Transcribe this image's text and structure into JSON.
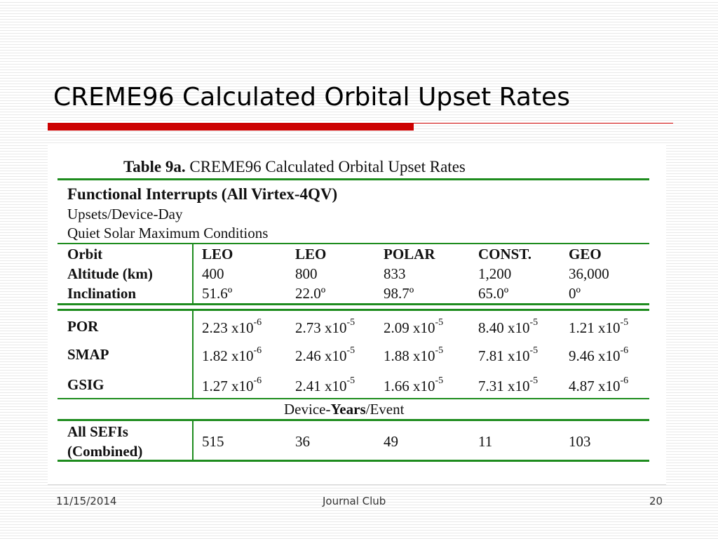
{
  "slide": {
    "title": "CREME96 Calculated Orbital Upset Rates",
    "footer": {
      "date": "11/15/2014",
      "center": "Journal Club",
      "page": "20"
    }
  },
  "table": {
    "caption_bold": "Table 9a.",
    "caption_rest": " CREME96 Calculated Orbital Upset Rates",
    "section_title": "Functional Interrupts (All Virtex-4QV)",
    "subtitle_1": "Upsets/Device-Day",
    "subtitle_2": "Quiet Solar Maximum Conditions",
    "header_labels": [
      "Orbit",
      "Altitude (km)",
      "Inclination"
    ],
    "orbits": [
      {
        "orbit": "LEO",
        "altitude": "400",
        "inclination": "51.6º"
      },
      {
        "orbit": "LEO",
        "altitude": "800",
        "inclination": "22.0º"
      },
      {
        "orbit": "POLAR",
        "altitude": "833",
        "inclination": "98.7º"
      },
      {
        "orbit": "CONST.",
        "altitude": "1,200",
        "inclination": "65.0º"
      },
      {
        "orbit": "GEO",
        "altitude": "36,000",
        "inclination": "0º"
      }
    ],
    "rows": [
      {
        "label": "POR",
        "cells": [
          {
            "m": "2.23 x10",
            "e": "-6"
          },
          {
            "m": "2.73 x10",
            "e": "-5"
          },
          {
            "m": "2.09 x10",
            "e": "-5"
          },
          {
            "m": "8.40 x10",
            "e": "-5"
          },
          {
            "m": "1.21 x10",
            "e": "-5"
          }
        ]
      },
      {
        "label": "SMAP",
        "cells": [
          {
            "m": "1.82 x10",
            "e": "-6"
          },
          {
            "m": "2.46 x10",
            "e": "-5"
          },
          {
            "m": "1.88 x10",
            "e": "-5"
          },
          {
            "m": "7.81 x10",
            "e": "-5"
          },
          {
            "m": "9.46 x10",
            "e": "-6"
          }
        ]
      },
      {
        "label": "GSIG",
        "cells": [
          {
            "m": "1.27 x10",
            "e": "-6"
          },
          {
            "m": "2.41 x10",
            "e": "-5"
          },
          {
            "m": "1.66 x10",
            "e": "-5"
          },
          {
            "m": "7.31 x10",
            "e": "-5"
          },
          {
            "m": "4.87 x10",
            "e": "-6"
          }
        ]
      }
    ],
    "mid_label": {
      "pre": "Device-",
      "bold": "Years",
      "post": "/Event"
    },
    "sefi": {
      "label_1": "All SEFIs",
      "label_2": "(Combined)",
      "values": [
        "515",
        "36",
        "49",
        "11",
        "103"
      ]
    }
  }
}
